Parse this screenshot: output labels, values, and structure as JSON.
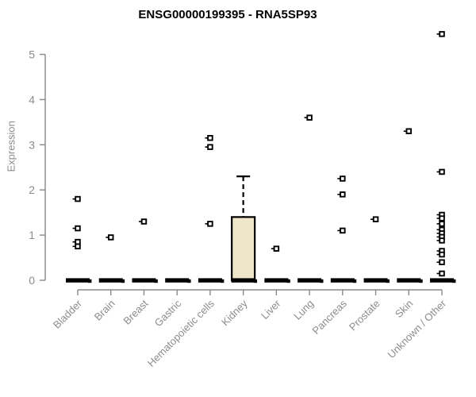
{
  "chart_data": {
    "type": "boxplot",
    "title": "ENSG00000199395 - RNA5SP93",
    "ylabel": "Expression",
    "xlabel": "",
    "ylim": [
      0,
      5.5
    ],
    "yticks": [
      0,
      1,
      2,
      3,
      4,
      5
    ],
    "grid": false,
    "legend": "none",
    "categories": [
      "Bladder",
      "Brain",
      "Breast",
      "Gastric",
      "Hematopoietic cells",
      "Kidney",
      "Liver",
      "Lung",
      "Pancreas",
      "Prostate",
      "Skin",
      "Unknown / Other"
    ],
    "zero_median_bar_all_categories": true,
    "box": {
      "category": "Kidney",
      "q1": 0,
      "median": 0,
      "q3": 1.4,
      "whisker_low": 0,
      "whisker_high": 2.3
    },
    "outliers": [
      [
        1.8,
        1.15,
        0.85,
        0.75
      ],
      [
        0.95
      ],
      [
        1.3
      ],
      [],
      [
        3.15,
        2.95,
        1.25
      ],
      [],
      [
        0.7
      ],
      [
        3.6
      ],
      [
        2.25,
        1.9,
        1.1
      ],
      [
        1.35
      ],
      [
        3.3
      ],
      [
        5.45,
        2.4,
        1.45,
        1.37,
        1.25,
        1.12,
        1.04,
        0.96,
        0.88,
        0.65,
        0.57,
        0.4,
        0.15
      ]
    ],
    "colors": {
      "box_fill": "#EDE6C8",
      "box_stroke": "#000000",
      "axis_line": "#888888",
      "axis_text": "#8c8c8c",
      "marker": "#000000",
      "title_text": "#000000"
    }
  }
}
